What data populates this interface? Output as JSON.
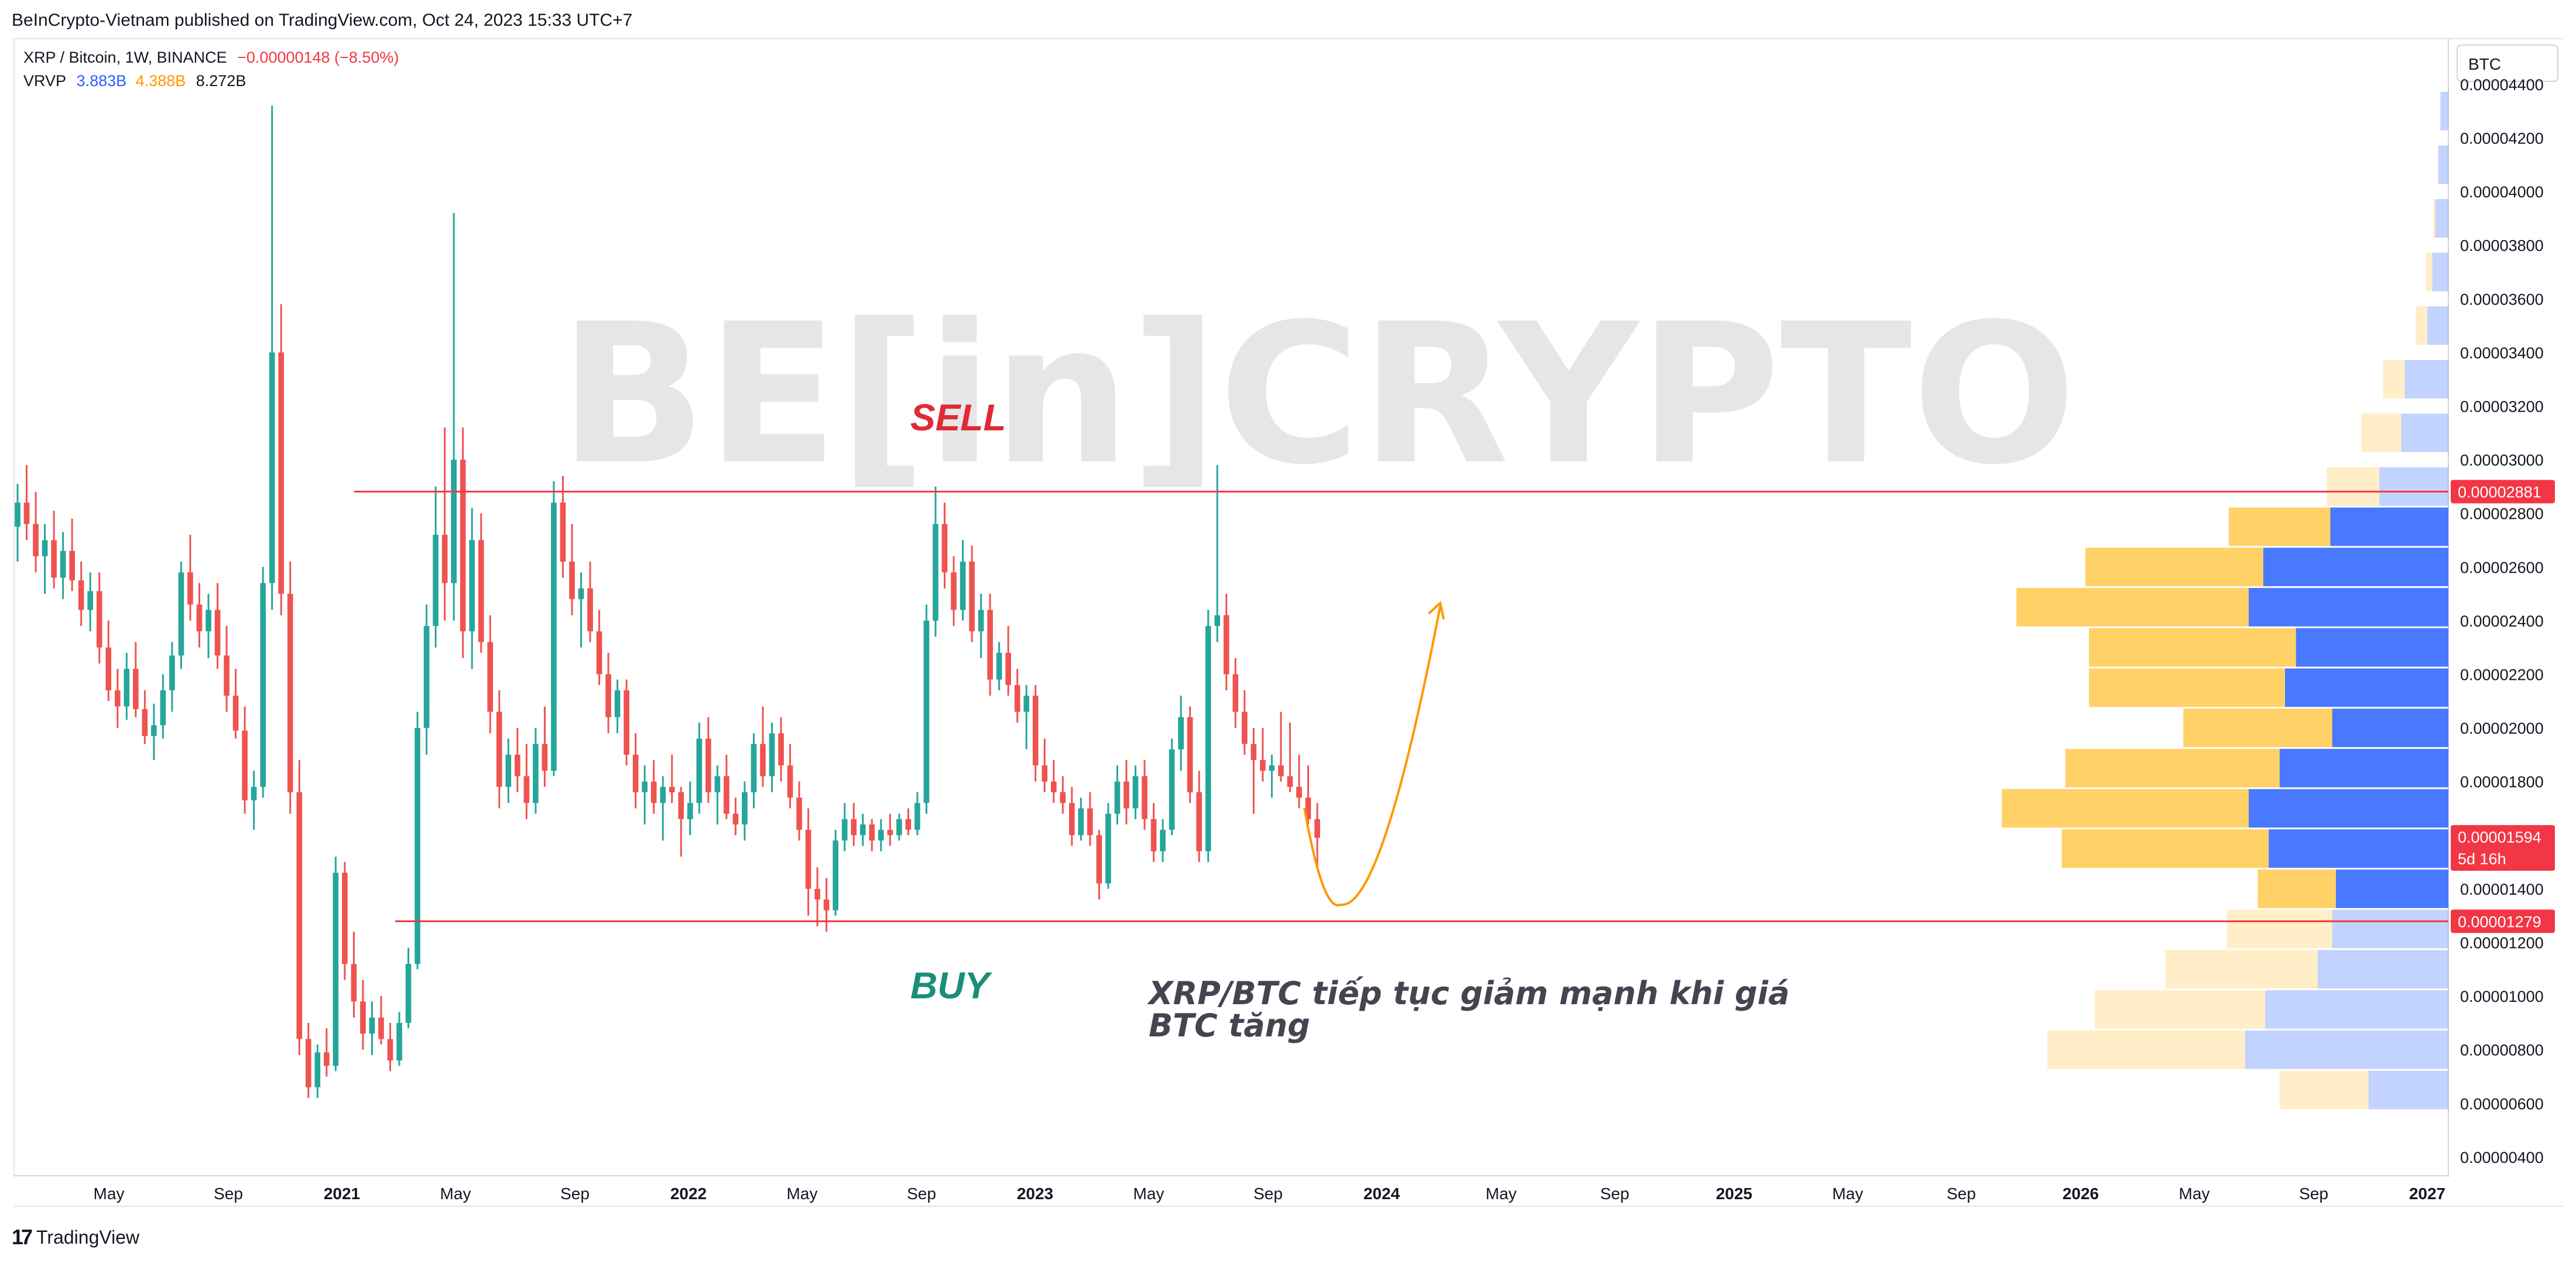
{
  "header": {
    "attribution": "BeInCrypto-Vietnam published on TradingView.com, Oct 24, 2023 15:33 UTC+7"
  },
  "legend": {
    "symbol": "XRP / Bitcoin, 1W, BINANCE",
    "change": "−0.00000148 (−8.50%)",
    "indicator": "VRVP",
    "vol_up": "3.883B",
    "vol_down": "4.388B",
    "vol_total": "8.272B"
  },
  "currency_selector": "BTC",
  "watermark": "BE[in]CRYPTO",
  "footer": {
    "brand": "TradingView"
  },
  "colors": {
    "up": "#26a69a",
    "down": "#ef5350",
    "level_line": "#f23645",
    "vp_up": "#2962ff",
    "vp_down": "#ffb300",
    "arrow": "#ff9800"
  },
  "chart_data": {
    "type": "candlestick",
    "timeframe": "1W",
    "x_axis_labels": [
      "May",
      "Sep",
      "2021",
      "May",
      "Sep",
      "2022",
      "May",
      "Sep",
      "2023",
      "May",
      "Sep",
      "2024",
      "May",
      "Sep",
      "2025",
      "May",
      "Sep",
      "2026",
      "May",
      "Sep",
      "2027"
    ],
    "y_axis_labels": [
      "0.00004400",
      "0.00004200",
      "0.00004000",
      "0.00003800",
      "0.00003600",
      "0.00003400",
      "0.00003200",
      "0.00003000",
      "0.00002800",
      "0.00002600",
      "0.00002400",
      "0.00002200",
      "0.00002000",
      "0.00001800",
      "0.00001400",
      "0.00001200",
      "0.00001000",
      "0.00000800",
      "0.00000600",
      "0.00000400"
    ],
    "ylim": [
      3.3e-06,
      4.57e-05
    ],
    "price_tags": [
      {
        "label": "0.00002881",
        "value": 2.881e-05
      },
      {
        "label": "0.00001594",
        "value": 1.594e-05,
        "sub": "5d 16h"
      },
      {
        "label": "0.00001279",
        "value": 1.279e-05
      }
    ],
    "levels": [
      {
        "name": "resistance",
        "value": 2.881e-05
      },
      {
        "name": "support",
        "value": 1.279e-05
      }
    ],
    "annotations": {
      "sell": "SELL",
      "buy": "BUY",
      "note_line1": "XRP/BTC tiếp tục giảm mạnh khi giá",
      "note_line2": "BTC tăng"
    },
    "candles": [
      [
        2.75e-05,
        2.91e-05,
        2.62e-05,
        2.84e-05
      ],
      [
        2.84e-05,
        2.98e-05,
        2.7e-05,
        2.76e-05
      ],
      [
        2.76e-05,
        2.88e-05,
        2.58e-05,
        2.64e-05
      ],
      [
        2.64e-05,
        2.76e-05,
        2.5e-05,
        2.7e-05
      ],
      [
        2.7e-05,
        2.81e-05,
        2.52e-05,
        2.56e-05
      ],
      [
        2.56e-05,
        2.73e-05,
        2.48e-05,
        2.66e-05
      ],
      [
        2.66e-05,
        2.78e-05,
        2.51e-05,
        2.55e-05
      ],
      [
        2.55e-05,
        2.62e-05,
        2.38e-05,
        2.44e-05
      ],
      [
        2.44e-05,
        2.58e-05,
        2.36e-05,
        2.51e-05
      ],
      [
        2.51e-05,
        2.58e-05,
        2.24e-05,
        2.3e-05
      ],
      [
        2.3e-05,
        2.4e-05,
        2.1e-05,
        2.14e-05
      ],
      [
        2.14e-05,
        2.22e-05,
        2e-05,
        2.08e-05
      ],
      [
        2.08e-05,
        2.28e-05,
        2.03e-05,
        2.22e-05
      ],
      [
        2.22e-05,
        2.32e-05,
        2.04e-05,
        2.07e-05
      ],
      [
        2.07e-05,
        2.14e-05,
        1.94e-05,
        1.97e-05
      ],
      [
        1.97e-05,
        2.09e-05,
        1.88e-05,
        2.01e-05
      ],
      [
        2.01e-05,
        2.2e-05,
        1.96e-05,
        2.14e-05
      ],
      [
        2.14e-05,
        2.32e-05,
        2.06e-05,
        2.27e-05
      ],
      [
        2.27e-05,
        2.62e-05,
        2.22e-05,
        2.58e-05
      ],
      [
        2.58e-05,
        2.72e-05,
        2.4e-05,
        2.46e-05
      ],
      [
        2.46e-05,
        2.54e-05,
        2.3e-05,
        2.36e-05
      ],
      [
        2.36e-05,
        2.5e-05,
        2.26e-05,
        2.44e-05
      ],
      [
        2.44e-05,
        2.54e-05,
        2.22e-05,
        2.27e-05
      ],
      [
        2.27e-05,
        2.38e-05,
        2.06e-05,
        2.12e-05
      ],
      [
        2.12e-05,
        2.22e-05,
        1.96e-05,
        1.99e-05
      ],
      [
        1.99e-05,
        2.08e-05,
        1.68e-05,
        1.73e-05
      ],
      [
        1.73e-05,
        1.84e-05,
        1.62e-05,
        1.78e-05
      ],
      [
        1.78e-05,
        2.6e-05,
        1.74e-05,
        2.54e-05
      ],
      [
        2.54e-05,
        4.32e-05,
        2.44e-05,
        3.4e-05
      ],
      [
        3.4e-05,
        3.58e-05,
        2.42e-05,
        2.5e-05
      ],
      [
        2.5e-05,
        2.62e-05,
        1.68e-05,
        1.76e-05
      ],
      [
        1.76e-05,
        1.88e-05,
        7.8e-06,
        8.4e-06
      ],
      [
        8.4e-06,
        9e-06,
        6.2e-06,
        6.6e-06
      ],
      [
        6.6e-06,
        8.2e-06,
        6.2e-06,
        7.9e-06
      ],
      [
        7.9e-06,
        8.8e-06,
        7e-06,
        7.4e-06
      ],
      [
        7.4e-06,
        1.52e-05,
        7.2e-06,
        1.46e-05
      ],
      [
        1.46e-05,
        1.5e-05,
        1.06e-05,
        1.12e-05
      ],
      [
        1.12e-05,
        1.24e-05,
        9.2e-06,
        9.8e-06
      ],
      [
        9.8e-06,
        1.06e-05,
        8e-06,
        8.6e-06
      ],
      [
        8.6e-06,
        9.8e-06,
        7.8e-06,
        9.2e-06
      ],
      [
        9.2e-06,
        1e-05,
        8.2e-06,
        8.4e-06
      ],
      [
        8.4e-06,
        9e-06,
        7.2e-06,
        7.6e-06
      ],
      [
        7.6e-06,
        9.4e-06,
        7.4e-06,
        9e-06
      ],
      [
        9e-06,
        1.18e-05,
        8.8e-06,
        1.12e-05
      ],
      [
        1.12e-05,
        2.06e-05,
        1.1e-05,
        2e-05
      ],
      [
        2e-05,
        2.46e-05,
        1.9e-05,
        2.38e-05
      ],
      [
        2.38e-05,
        2.9e-05,
        2.3e-05,
        2.72e-05
      ],
      [
        2.72e-05,
        3.12e-05,
        2.4e-05,
        2.54e-05
      ],
      [
        2.54e-05,
        3.92e-05,
        2.4e-05,
        3e-05
      ],
      [
        3e-05,
        3.12e-05,
        2.26e-05,
        2.36e-05
      ],
      [
        2.36e-05,
        2.82e-05,
        2.22e-05,
        2.7e-05
      ],
      [
        2.7e-05,
        2.8e-05,
        2.28e-05,
        2.32e-05
      ],
      [
        2.32e-05,
        2.42e-05,
        1.98e-05,
        2.06e-05
      ],
      [
        2.06e-05,
        2.14e-05,
        1.7e-05,
        1.78e-05
      ],
      [
        1.78e-05,
        1.96e-05,
        1.72e-05,
        1.9e-05
      ],
      [
        1.9e-05,
        2e-05,
        1.76e-05,
        1.82e-05
      ],
      [
        1.82e-05,
        1.94e-05,
        1.66e-05,
        1.72e-05
      ],
      [
        1.72e-05,
        2e-05,
        1.68e-05,
        1.94e-05
      ],
      [
        1.94e-05,
        2.08e-05,
        1.78e-05,
        1.84e-05
      ],
      [
        1.84e-05,
        2.92e-05,
        1.82e-05,
        2.84e-05
      ],
      [
        2.84e-05,
        2.94e-05,
        2.56e-05,
        2.62e-05
      ],
      [
        2.62e-05,
        2.76e-05,
        2.42e-05,
        2.48e-05
      ],
      [
        2.48e-05,
        2.58e-05,
        2.3e-05,
        2.52e-05
      ],
      [
        2.52e-05,
        2.62e-05,
        2.32e-05,
        2.36e-05
      ],
      [
        2.36e-05,
        2.44e-05,
        2.16e-05,
        2.2e-05
      ],
      [
        2.2e-05,
        2.28e-05,
        1.98e-05,
        2.04e-05
      ],
      [
        2.04e-05,
        2.18e-05,
        1.98e-05,
        2.14e-05
      ],
      [
        2.14e-05,
        2.18e-05,
        1.86e-05,
        1.9e-05
      ],
      [
        1.9e-05,
        1.98e-05,
        1.7e-05,
        1.76e-05
      ],
      [
        1.76e-05,
        1.86e-05,
        1.64e-05,
        1.8e-05
      ],
      [
        1.8e-05,
        1.88e-05,
        1.68e-05,
        1.72e-05
      ],
      [
        1.72e-05,
        1.82e-05,
        1.58e-05,
        1.78e-05
      ],
      [
        1.78e-05,
        1.9e-05,
        1.72e-05,
        1.76e-05
      ],
      [
        1.76e-05,
        1.78e-05,
        1.52e-05,
        1.66e-05
      ],
      [
        1.66e-05,
        1.8e-05,
        1.6e-05,
        1.72e-05
      ],
      [
        1.72e-05,
        2.02e-05,
        1.68e-05,
        1.96e-05
      ],
      [
        1.96e-05,
        2.04e-05,
        1.72e-05,
        1.76e-05
      ],
      [
        1.76e-05,
        1.86e-05,
        1.64e-05,
        1.82e-05
      ],
      [
        1.82e-05,
        1.9e-05,
        1.66e-05,
        1.68e-05
      ],
      [
        1.68e-05,
        1.74e-05,
        1.6e-05,
        1.64e-05
      ],
      [
        1.64e-05,
        1.8e-05,
        1.58e-05,
        1.76e-05
      ],
      [
        1.76e-05,
        1.98e-05,
        1.7e-05,
        1.94e-05
      ],
      [
        1.94e-05,
        2.08e-05,
        1.78e-05,
        1.82e-05
      ],
      [
        1.82e-05,
        2.02e-05,
        1.76e-05,
        1.98e-05
      ],
      [
        1.98e-05,
        2.04e-05,
        1.8e-05,
        1.86e-05
      ],
      [
        1.86e-05,
        1.94e-05,
        1.7e-05,
        1.74e-05
      ],
      [
        1.74e-05,
        1.8e-05,
        1.58e-05,
        1.62e-05
      ],
      [
        1.62e-05,
        1.7e-05,
        1.3e-05,
        1.4e-05
      ],
      [
        1.4e-05,
        1.48e-05,
        1.26e-05,
        1.36e-05
      ],
      [
        1.36e-05,
        1.44e-05,
        1.24e-05,
        1.32e-05
      ],
      [
        1.32e-05,
        1.62e-05,
        1.3e-05,
        1.58e-05
      ],
      [
        1.58e-05,
        1.72e-05,
        1.54e-05,
        1.66e-05
      ],
      [
        1.66e-05,
        1.72e-05,
        1.56e-05,
        1.6e-05
      ],
      [
        1.6e-05,
        1.68e-05,
        1.56e-05,
        1.64e-05
      ],
      [
        1.64e-05,
        1.66e-05,
        1.54e-05,
        1.58e-05
      ],
      [
        1.58e-05,
        1.66e-05,
        1.54e-05,
        1.62e-05
      ],
      [
        1.62e-05,
        1.68e-05,
        1.56e-05,
        1.6e-05
      ],
      [
        1.6e-05,
        1.68e-05,
        1.58e-05,
        1.66e-05
      ],
      [
        1.66e-05,
        1.7e-05,
        1.6e-05,
        1.62e-05
      ],
      [
        1.62e-05,
        1.76e-05,
        1.6e-05,
        1.72e-05
      ],
      [
        1.72e-05,
        2.46e-05,
        1.68e-05,
        2.4e-05
      ],
      [
        2.4e-05,
        2.9e-05,
        2.34e-05,
        2.76e-05
      ],
      [
        2.76e-05,
        2.84e-05,
        2.52e-05,
        2.58e-05
      ],
      [
        2.58e-05,
        2.64e-05,
        2.38e-05,
        2.44e-05
      ],
      [
        2.44e-05,
        2.7e-05,
        2.4e-05,
        2.62e-05
      ],
      [
        2.62e-05,
        2.68e-05,
        2.32e-05,
        2.36e-05
      ],
      [
        2.36e-05,
        2.5e-05,
        2.26e-05,
        2.44e-05
      ],
      [
        2.44e-05,
        2.5e-05,
        2.12e-05,
        2.18e-05
      ],
      [
        2.18e-05,
        2.32e-05,
        2.14e-05,
        2.28e-05
      ],
      [
        2.28e-05,
        2.38e-05,
        2.12e-05,
        2.16e-05
      ],
      [
        2.16e-05,
        2.22e-05,
        2.02e-05,
        2.06e-05
      ],
      [
        2.06e-05,
        2.16e-05,
        1.92e-05,
        2.12e-05
      ],
      [
        2.12e-05,
        2.16e-05,
        1.8e-05,
        1.86e-05
      ],
      [
        1.86e-05,
        1.96e-05,
        1.76e-05,
        1.8e-05
      ],
      [
        1.8e-05,
        1.88e-05,
        1.72e-05,
        1.76e-05
      ],
      [
        1.76e-05,
        1.82e-05,
        1.68e-05,
        1.72e-05
      ],
      [
        1.72e-05,
        1.78e-05,
        1.56e-05,
        1.6e-05
      ],
      [
        1.6e-05,
        1.74e-05,
        1.58e-05,
        1.7e-05
      ],
      [
        1.7e-05,
        1.76e-05,
        1.56e-05,
        1.6e-05
      ],
      [
        1.6e-05,
        1.62e-05,
        1.36e-05,
        1.42e-05
      ],
      [
        1.42e-05,
        1.72e-05,
        1.4e-05,
        1.68e-05
      ],
      [
        1.68e-05,
        1.86e-05,
        1.64e-05,
        1.8e-05
      ],
      [
        1.8e-05,
        1.88e-05,
        1.64e-05,
        1.7e-05
      ],
      [
        1.7e-05,
        1.86e-05,
        1.66e-05,
        1.82e-05
      ],
      [
        1.82e-05,
        1.88e-05,
        1.62e-05,
        1.66e-05
      ],
      [
        1.66e-05,
        1.72e-05,
        1.5e-05,
        1.54e-05
      ],
      [
        1.54e-05,
        1.66e-05,
        1.5e-05,
        1.62e-05
      ],
      [
        1.62e-05,
        1.96e-05,
        1.6e-05,
        1.92e-05
      ],
      [
        1.92e-05,
        2.12e-05,
        1.84e-05,
        2.04e-05
      ],
      [
        2.04e-05,
        2.08e-05,
        1.72e-05,
        1.76e-05
      ],
      [
        1.76e-05,
        1.84e-05,
        1.5e-05,
        1.54e-05
      ],
      [
        1.54e-05,
        2.44e-05,
        1.5e-05,
        2.38e-05
      ],
      [
        2.38e-05,
        2.98e-05,
        2.32e-05,
        2.42e-05
      ],
      [
        2.42e-05,
        2.5e-05,
        2.14e-05,
        2.2e-05
      ],
      [
        2.2e-05,
        2.26e-05,
        2e-05,
        2.06e-05
      ],
      [
        2.06e-05,
        2.14e-05,
        1.9e-05,
        1.94e-05
      ],
      [
        1.94e-05,
        2e-05,
        1.68e-05,
        1.88e-05
      ],
      [
        1.88e-05,
        2e-05,
        1.8e-05,
        1.84e-05
      ],
      [
        1.84e-05,
        1.9e-05,
        1.74e-05,
        1.86e-05
      ],
      [
        1.86e-05,
        2.06e-05,
        1.8e-05,
        1.82e-05
      ],
      [
        1.82e-05,
        2.02e-05,
        1.76e-05,
        1.78e-05
      ],
      [
        1.78e-05,
        1.9e-05,
        1.7e-05,
        1.74e-05
      ],
      [
        1.74e-05,
        1.86e-05,
        1.64e-05,
        1.66e-05
      ],
      [
        1.66e-05,
        1.72e-05,
        1.48e-05,
        1.59e-05
      ]
    ],
    "volume_profile": [
      {
        "price": 4.3e-05,
        "up": 22,
        "down": 0
      },
      {
        "price": 4.1e-05,
        "up": 28,
        "down": 0
      },
      {
        "price": 3.9e-05,
        "up": 36,
        "down": 6
      },
      {
        "price": 3.7e-05,
        "up": 44,
        "down": 18
      },
      {
        "price": 3.5e-05,
        "up": 58,
        "down": 32
      },
      {
        "price": 3.3e-05,
        "up": 120,
        "down": 60
      },
      {
        "price": 3.1e-05,
        "up": 130,
        "down": 110
      },
      {
        "price": 2.9e-05,
        "up": 190,
        "down": 145
      },
      {
        "price": 2.75e-05,
        "up": 325,
        "down": 280
      },
      {
        "price": 2.6e-05,
        "up": 510,
        "down": 490
      },
      {
        "price": 2.45e-05,
        "up": 550,
        "down": 640
      },
      {
        "price": 2.3e-05,
        "up": 420,
        "down": 570
      },
      {
        "price": 2.15e-05,
        "up": 450,
        "down": 540
      },
      {
        "price": 2e-05,
        "up": 320,
        "down": 410
      },
      {
        "price": 1.85e-05,
        "up": 465,
        "down": 590
      },
      {
        "price": 1.7e-05,
        "up": 550,
        "down": 680
      },
      {
        "price": 1.55e-05,
        "up": 495,
        "down": 570
      },
      {
        "price": 1.4e-05,
        "up": 310,
        "down": 215
      },
      {
        "price": 1.25e-05,
        "up": 320,
        "down": 290
      },
      {
        "price": 1.1e-05,
        "up": 360,
        "down": 420
      },
      {
        "price": 9.5e-06,
        "up": 505,
        "down": 470
      },
      {
        "price": 8e-06,
        "up": 560,
        "down": 545
      },
      {
        "price": 6.5e-06,
        "up": 220,
        "down": 245
      }
    ]
  }
}
